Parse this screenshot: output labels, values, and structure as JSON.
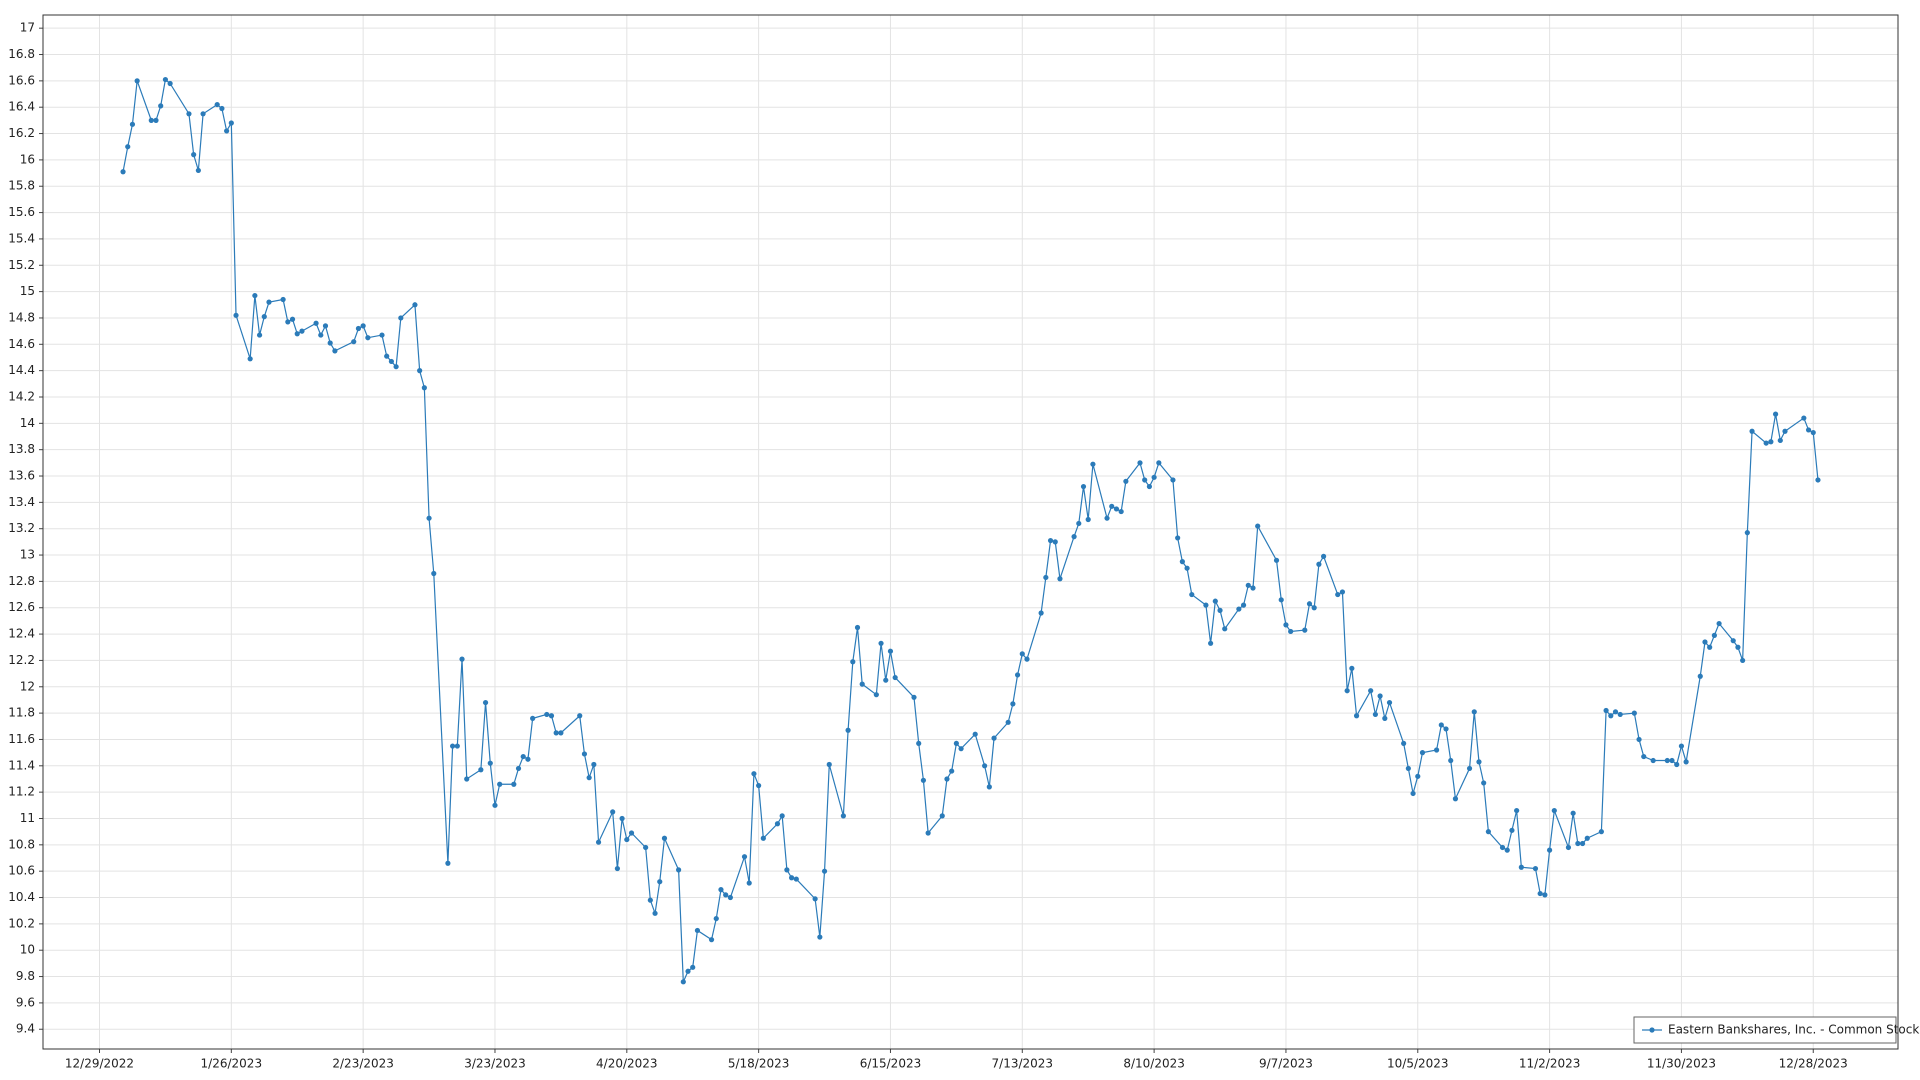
{
  "chart_data": {
    "type": "line",
    "x": [
      "1/3/2023",
      "1/4/2023",
      "1/5/2023",
      "1/6/2023",
      "1/9/2023",
      "1/10/2023",
      "1/11/2023",
      "1/12/2023",
      "1/13/2023",
      "1/17/2023",
      "1/18/2023",
      "1/19/2023",
      "1/20/2023",
      "1/23/2023",
      "1/24/2023",
      "1/25/2023",
      "1/26/2023",
      "1/27/2023",
      "1/30/2023",
      "1/31/2023",
      "2/1/2023",
      "2/2/2023",
      "2/3/2023",
      "2/6/2023",
      "2/7/2023",
      "2/8/2023",
      "2/9/2023",
      "2/10/2023",
      "2/13/2023",
      "2/14/2023",
      "2/15/2023",
      "2/16/2023",
      "2/17/2023",
      "2/21/2023",
      "2/22/2023",
      "2/23/2023",
      "2/24/2023",
      "2/27/2023",
      "2/28/2023",
      "3/1/2023",
      "3/2/2023",
      "3/3/2023",
      "3/6/2023",
      "3/7/2023",
      "3/8/2023",
      "3/9/2023",
      "3/10/2023",
      "3/13/2023",
      "3/14/2023",
      "3/15/2023",
      "3/16/2023",
      "3/17/2023",
      "3/20/2023",
      "3/21/2023",
      "3/22/2023",
      "3/23/2023",
      "3/24/2023",
      "3/27/2023",
      "3/28/2023",
      "3/29/2023",
      "3/30/2023",
      "3/31/2023",
      "4/3/2023",
      "4/4/2023",
      "4/5/2023",
      "4/6/2023",
      "4/10/2023",
      "4/11/2023",
      "4/12/2023",
      "4/13/2023",
      "4/14/2023",
      "4/17/2023",
      "4/18/2023",
      "4/19/2023",
      "4/20/2023",
      "4/21/2023",
      "4/24/2023",
      "4/25/2023",
      "4/26/2023",
      "4/27/2023",
      "4/28/2023",
      "5/1/2023",
      "5/2/2023",
      "5/3/2023",
      "5/4/2023",
      "5/5/2023",
      "5/8/2023",
      "5/9/2023",
      "5/10/2023",
      "5/11/2023",
      "5/12/2023",
      "5/15/2023",
      "5/16/2023",
      "5/17/2023",
      "5/18/2023",
      "5/19/2023",
      "5/22/2023",
      "5/23/2023",
      "5/24/2023",
      "5/25/2023",
      "5/26/2023",
      "5/30/2023",
      "5/31/2023",
      "6/1/2023",
      "6/2/2023",
      "6/5/2023",
      "6/6/2023",
      "6/7/2023",
      "6/8/2023",
      "6/9/2023",
      "6/12/2023",
      "6/13/2023",
      "6/14/2023",
      "6/15/2023",
      "6/16/2023",
      "6/20/2023",
      "6/21/2023",
      "6/22/2023",
      "6/23/2023",
      "6/26/2023",
      "6/27/2023",
      "6/28/2023",
      "6/29/2023",
      "6/30/2023",
      "7/3/2023",
      "7/5/2023",
      "7/6/2023",
      "7/7/2023",
      "7/10/2023",
      "7/11/2023",
      "7/12/2023",
      "7/13/2023",
      "7/14/2023",
      "7/17/2023",
      "7/18/2023",
      "7/19/2023",
      "7/20/2023",
      "7/21/2023",
      "7/24/2023",
      "7/25/2023",
      "7/26/2023",
      "7/27/2023",
      "7/28/2023",
      "7/31/2023",
      "8/1/2023",
      "8/2/2023",
      "8/3/2023",
      "8/4/2023",
      "8/7/2023",
      "8/8/2023",
      "8/9/2023",
      "8/10/2023",
      "8/11/2023",
      "8/14/2023",
      "8/15/2023",
      "8/16/2023",
      "8/17/2023",
      "8/18/2023",
      "8/21/2023",
      "8/22/2023",
      "8/23/2023",
      "8/24/2023",
      "8/25/2023",
      "8/28/2023",
      "8/29/2023",
      "8/30/2023",
      "8/31/2023",
      "9/1/2023",
      "9/5/2023",
      "9/6/2023",
      "9/7/2023",
      "9/8/2023",
      "9/11/2023",
      "9/12/2023",
      "9/13/2023",
      "9/14/2023",
      "9/15/2023",
      "9/18/2023",
      "9/19/2023",
      "9/20/2023",
      "9/21/2023",
      "9/22/2023",
      "9/25/2023",
      "9/26/2023",
      "9/27/2023",
      "9/28/2023",
      "9/29/2023",
      "10/2/2023",
      "10/3/2023",
      "10/4/2023",
      "10/5/2023",
      "10/6/2023",
      "10/9/2023",
      "10/10/2023",
      "10/11/2023",
      "10/12/2023",
      "10/13/2023",
      "10/16/2023",
      "10/17/2023",
      "10/18/2023",
      "10/19/2023",
      "10/20/2023",
      "10/23/2023",
      "10/24/2023",
      "10/25/2023",
      "10/26/2023",
      "10/27/2023",
      "10/30/2023",
      "10/31/2023",
      "11/1/2023",
      "11/2/2023",
      "11/3/2023",
      "11/6/2023",
      "11/7/2023",
      "11/8/2023",
      "11/9/2023",
      "11/10/2023",
      "11/13/2023",
      "11/14/2023",
      "11/15/2023",
      "11/16/2023",
      "11/17/2023",
      "11/20/2023",
      "11/21/2023",
      "11/22/2023",
      "11/24/2023",
      "11/27/2023",
      "11/28/2023",
      "11/29/2023",
      "11/30/2023",
      "12/1/2023",
      "12/4/2023",
      "12/5/2023",
      "12/6/2023",
      "12/7/2023",
      "12/8/2023",
      "12/11/2023",
      "12/12/2023",
      "12/13/2023",
      "12/14/2023",
      "12/15/2023",
      "12/18/2023",
      "12/19/2023",
      "12/20/2023",
      "12/21/2023",
      "12/22/2023",
      "12/26/2023",
      "12/27/2023",
      "12/28/2023",
      "12/29/2023"
    ],
    "series": [
      {
        "name": "Eastern Bankshares, Inc. - Common Stock",
        "color": "#2b7bb9",
        "values": [
          15.91,
          16.1,
          16.27,
          16.6,
          16.3,
          16.3,
          16.41,
          16.61,
          16.58,
          16.35,
          16.04,
          15.92,
          16.35,
          16.42,
          16.39,
          16.22,
          16.28,
          14.82,
          14.49,
          14.97,
          14.67,
          14.81,
          14.92,
          14.94,
          14.77,
          14.79,
          14.68,
          14.7,
          14.76,
          14.67,
          14.74,
          14.61,
          14.55,
          14.62,
          14.72,
          14.74,
          14.65,
          14.67,
          14.51,
          14.47,
          14.43,
          14.8,
          14.9,
          14.4,
          14.27,
          13.28,
          12.86,
          10.66,
          11.55,
          11.55,
          12.21,
          11.3,
          11.37,
          11.88,
          11.42,
          11.1,
          11.26,
          11.26,
          11.38,
          11.47,
          11.45,
          11.76,
          11.79,
          11.78,
          11.65,
          11.65,
          11.78,
          11.49,
          11.31,
          11.41,
          10.82,
          11.05,
          10.62,
          11.0,
          10.84,
          10.89,
          10.78,
          10.38,
          10.28,
          10.52,
          10.85,
          10.61,
          9.76,
          9.84,
          9.87,
          10.15,
          10.08,
          10.24,
          10.46,
          10.42,
          10.4,
          10.71,
          10.51,
          11.34,
          11.25,
          10.85,
          10.96,
          11.02,
          10.61,
          10.55,
          10.54,
          10.39,
          10.1,
          10.6,
          11.41,
          11.02,
          11.67,
          12.19,
          12.45,
          12.02,
          11.94,
          12.33,
          12.05,
          12.27,
          12.07,
          11.92,
          11.57,
          11.29,
          10.89,
          11.02,
          11.3,
          11.36,
          11.57,
          11.53,
          11.64,
          11.4,
          11.24,
          11.61,
          11.73,
          11.87,
          12.09,
          12.25,
          12.21,
          12.56,
          12.83,
          13.11,
          13.1,
          12.82,
          13.14,
          13.24,
          13.52,
          13.27,
          13.69,
          13.28,
          13.37,
          13.35,
          13.33,
          13.56,
          13.7,
          13.57,
          13.52,
          13.59,
          13.7,
          13.57,
          13.13,
          12.95,
          12.9,
          12.7,
          12.62,
          12.33,
          12.65,
          12.58,
          12.44,
          12.59,
          12.62,
          12.77,
          12.75,
          13.22,
          12.96,
          12.66,
          12.47,
          12.42,
          12.43,
          12.63,
          12.6,
          12.93,
          12.99,
          12.7,
          12.72,
          11.97,
          12.14,
          11.78,
          11.97,
          11.79,
          11.93,
          11.76,
          11.88,
          11.57,
          11.38,
          11.19,
          11.32,
          11.5,
          11.52,
          11.71,
          11.68,
          11.44,
          11.15,
          11.38,
          11.81,
          11.43,
          11.27,
          10.9,
          10.78,
          10.76,
          10.91,
          11.06,
          10.63,
          10.62,
          10.43,
          10.42,
          10.76,
          11.06,
          10.78,
          11.04,
          10.81,
          10.81,
          10.85,
          10.9,
          11.82,
          11.78,
          11.81,
          11.79,
          11.8,
          11.6,
          11.47,
          11.44,
          11.44,
          11.44,
          11.41,
          11.55,
          11.43,
          12.08,
          12.34,
          12.3,
          12.39,
          12.48,
          12.35,
          12.3,
          12.2,
          13.17,
          13.94,
          13.85,
          13.86,
          14.07,
          13.87,
          13.94,
          14.04,
          13.95,
          13.93,
          13.57
        ]
      }
    ],
    "xlim": [
      "12/17/2022",
      "1/15/2024"
    ],
    "xticks": [
      "12/29/2022",
      "1/26/2023",
      "2/23/2023",
      "3/23/2023",
      "4/20/2023",
      "5/18/2023",
      "6/15/2023",
      "7/13/2023",
      "8/10/2023",
      "9/7/2023",
      "10/5/2023",
      "11/2/2023",
      "11/30/2023",
      "12/28/2023"
    ],
    "ylim": [
      9.25,
      17.1
    ],
    "yticks": [
      9.4,
      9.6,
      9.8,
      10,
      10.2,
      10.4,
      10.6,
      10.8,
      11,
      11.2,
      11.4,
      11.6,
      11.8,
      12,
      12.2,
      12.4,
      12.6,
      12.8,
      13,
      13.2,
      13.4,
      13.6,
      13.8,
      14,
      14.2,
      14.4,
      14.6,
      14.8,
      15,
      15.2,
      15.4,
      15.6,
      15.8,
      16,
      16.2,
      16.4,
      16.6,
      16.8,
      17
    ],
    "grid": true,
    "markers": true,
    "legend": "lower right"
  }
}
